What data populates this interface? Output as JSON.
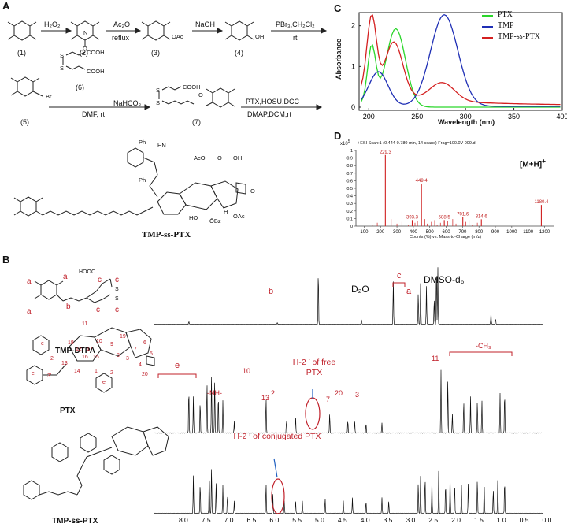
{
  "panel_labels": {
    "a": "A",
    "b": "B",
    "c": "C",
    "d": "D"
  },
  "scheme": {
    "reagents": {
      "r1": "H₂O₂",
      "r2a": "Ac₂O",
      "r2b": "reflux",
      "r3": "NaOH",
      "r4a": "PBr₃,CH₂Cl₂",
      "r4b": "rt",
      "r5a": "NaHCO₃",
      "r5b": "DMF,  rt",
      "r6a": "PTX,HOSU,DCC",
      "r6b": "DMAP,DCM,rt"
    },
    "compound_numbers": [
      "(1)",
      "(2)",
      "(3)",
      "(4)",
      "(5)",
      "(6)",
      "(7)"
    ],
    "atoms": {
      "OAc": "OAc",
      "OH": "OH",
      "Br": "Br",
      "COOH": "COOH",
      "S": "S",
      "N": "N",
      "Nplus": "N",
      "Ominus": "O",
      "AcO": "AcO",
      "HO": "HO",
      "O": "O",
      "OBz": "ŌBz",
      "OAc2": "ŌAc",
      "Ph": "Ph",
      "HN": "HN",
      "H": "H",
      "HOOC": "HOOC"
    },
    "product_name": "TMP-ss-PTX"
  },
  "uv": {
    "ylabel": "Absorbance",
    "xlabel": "Wavelength (nm)",
    "xticks": [
      "200",
      "250",
      "300",
      "350",
      "400"
    ],
    "yticks": [
      "0",
      "1",
      "2"
    ],
    "legend": [
      {
        "name": "PTX",
        "color": "#2bd62b"
      },
      {
        "name": "TMP",
        "color": "#1f2fb5"
      },
      {
        "name": "TMP-ss-PTX",
        "color": "#d42020"
      }
    ]
  },
  "ms": {
    "scale_label": "x10",
    "scale_exp": "5",
    "header": "+ESI Scan:1 (0.444-0.780 min, 14 scans) Frag=100.0V 009.d",
    "yticks": [
      "0",
      "0.1",
      "0.2",
      "0.3",
      "0.4",
      "0.5",
      "0.6",
      "0.7",
      "0.8",
      "0.9",
      "1"
    ],
    "xticks": [
      "100",
      "200",
      "300",
      "400",
      "500",
      "600",
      "700",
      "800",
      "900",
      "1000",
      "1100",
      "1200"
    ],
    "xlabel": "Counts (%) vs. Mass-to-Charge (m/z)",
    "peaks": [
      {
        "mz": "229.3",
        "mzv": 229.3,
        "h": 0.94
      },
      {
        "mz": "449.4",
        "mzv": 449.4,
        "h": 0.56
      },
      {
        "mz": "393.3",
        "mzv": 393.3,
        "h": 0.08
      },
      {
        "mz": "588.5",
        "mzv": 588.5,
        "h": 0.08
      },
      {
        "mz": "701.6",
        "mzv": 701.6,
        "h": 0.12
      },
      {
        "mz": "814.6",
        "mzv": 814.6,
        "h": 0.09
      },
      {
        "mz": "1180.4",
        "mzv": 1180.4,
        "h": 0.28
      }
    ],
    "ion_label": "[M+H]",
    "ion_sup": "+"
  },
  "nmr": {
    "compounds": [
      "TMP-DTPA",
      "PTX",
      "TMP-ss-PTX"
    ],
    "solvent_d2o": "D₂O",
    "solvent_dmso": "DMSO-d₆",
    "dtpa_labels": {
      "a": "a",
      "b": "b",
      "c": "c"
    },
    "ptx_labels": {
      "e": "e",
      "nh": "-NH-",
      "n10": "10",
      "n13": "13",
      "n2": "2",
      "n7": "7",
      "n20": "20",
      "n3": "3",
      "n11": "11",
      "ch3": "-CH₃"
    },
    "annot_free": "H-2 ′ of free PTX",
    "annot_conj": "H-2 ′ of conjugated PTX",
    "xticks": [
      "8.0",
      "7.5",
      "7.0",
      "6.5",
      "6.0",
      "5.5",
      "5.0",
      "4.5",
      "4.0",
      "3.5",
      "3.0",
      "2.5",
      "2.0",
      "1.5",
      "1.0",
      "0.5",
      "0.0"
    ],
    "ring_numbers": [
      "11",
      "18",
      "12",
      "10",
      "9",
      "13",
      "16",
      "15",
      "8",
      "3",
      "7",
      "6",
      "14",
      "1",
      "2",
      "4",
      "5",
      "17",
      "19",
      "20",
      "2'",
      "3'"
    ]
  }
}
